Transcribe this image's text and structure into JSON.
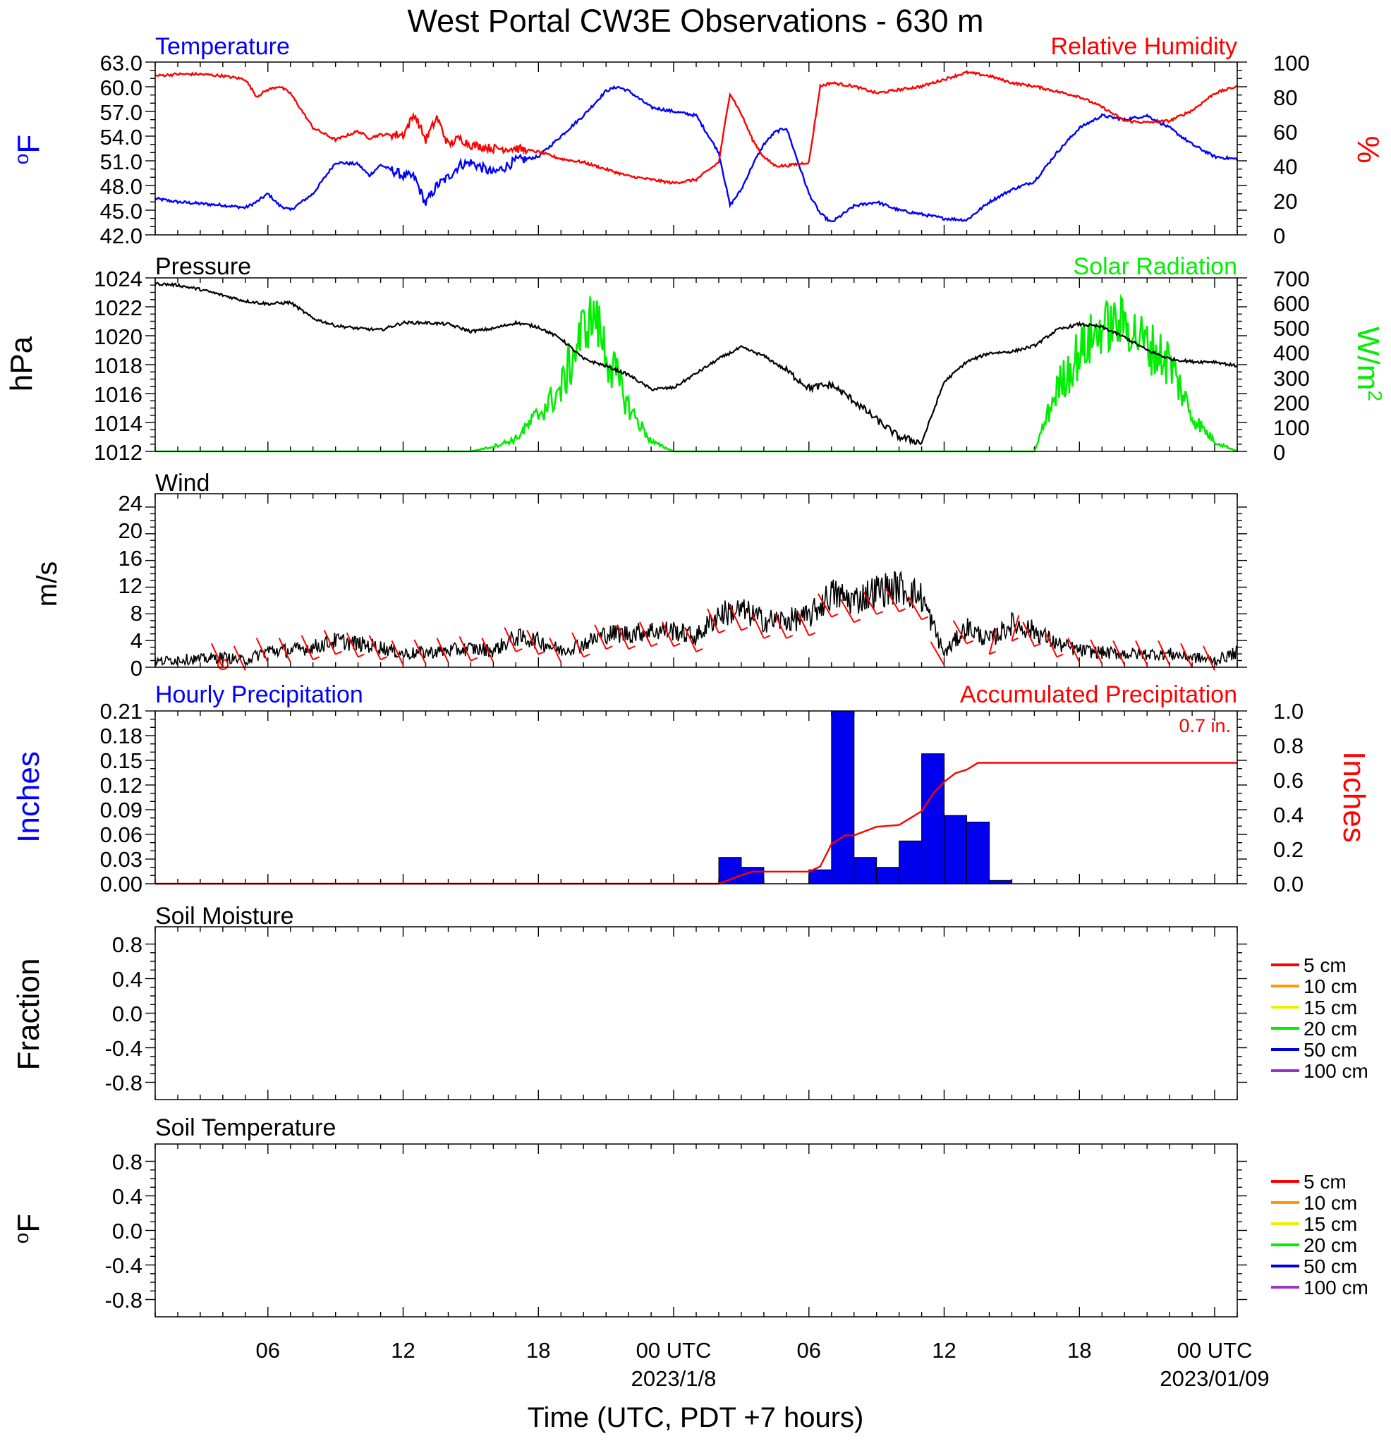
{
  "title": "West Portal CW3E Observations - 630 m",
  "xaxis": {
    "label": "Time (UTC, PDT +7 hours)",
    "start_hour": 1,
    "end_hour": 49,
    "ticks": [
      {
        "hour": 6,
        "label": "06",
        "date": ""
      },
      {
        "hour": 12,
        "label": "12",
        "date": ""
      },
      {
        "hour": 18,
        "label": "18",
        "date": ""
      },
      {
        "hour": 24,
        "label": "00 UTC",
        "date": "2023/1/8"
      },
      {
        "hour": 30,
        "label": "06",
        "date": ""
      },
      {
        "hour": 36,
        "label": "12",
        "date": ""
      },
      {
        "hour": 42,
        "label": "18",
        "date": ""
      },
      {
        "hour": 48,
        "label": "00 UTC",
        "date": "2023/01/09"
      }
    ]
  },
  "panels": {
    "temperature": {
      "left_title": "Temperature",
      "right_title": "Relative Humidity",
      "left_unit": "oF",
      "right_unit": "%",
      "left_ticks": [
        "63.0",
        "60.0",
        "57.0",
        "54.0",
        "51.0",
        "48.0",
        "45.0",
        "42.0"
      ],
      "right_ticks": [
        "100",
        "80",
        "60",
        "40",
        "20",
        "0"
      ]
    },
    "pressure": {
      "left_title": "Pressure",
      "right_title": "Solar Radiation",
      "left_unit": "hPa",
      "right_unit": "W/m2",
      "left_ticks": [
        "1024",
        "1022",
        "1020",
        "1018",
        "1016",
        "1014",
        "1012"
      ],
      "right_ticks": [
        "700",
        "600",
        "500",
        "400",
        "300",
        "200",
        "100",
        "0"
      ]
    },
    "wind": {
      "left_title": "Wind",
      "left_unit": "m/s",
      "left_ticks": [
        "24",
        "20",
        "16",
        "12",
        "8",
        "4",
        "0"
      ]
    },
    "precip": {
      "left_title": "Hourly Precipitation",
      "right_title": "Accumulated Precipitation",
      "left_unit": "Inches",
      "right_unit": "Inches",
      "total_label": "0.7 in.",
      "left_ticks": [
        "0.21",
        "0.18",
        "0.15",
        "0.12",
        "0.09",
        "0.06",
        "0.03",
        "0.00"
      ],
      "right_ticks": [
        "1.0",
        "0.8",
        "0.6",
        "0.4",
        "0.2",
        "0.0"
      ]
    },
    "soil_moisture": {
      "left_title": "Soil Moisture",
      "left_unit": "Fraction",
      "left_ticks": [
        "0.8",
        "0.4",
        "0.0",
        "-0.4",
        "-0.8"
      ],
      "legend": [
        "5 cm",
        "10 cm",
        "15 cm",
        "20 cm",
        "50 cm",
        "100 cm"
      ]
    },
    "soil_temperature": {
      "left_title": "Soil Temperature",
      "left_unit": "oF",
      "left_ticks": [
        "0.8",
        "0.4",
        "0.0",
        "-0.4",
        "-0.8"
      ],
      "legend": [
        "5 cm",
        "10 cm",
        "15 cm",
        "20 cm",
        "50 cm",
        "100 cm"
      ]
    }
  },
  "colors": {
    "temperature": "#0000ff",
    "relative_humidity": "#ff0000",
    "pressure": "#000000",
    "solar_radiation": "#00ee00",
    "wind_speed": "#000000",
    "wind_barbs": "#ff0000",
    "hourly_precip": "#0000ee",
    "accum_precip": "#ff0000",
    "legend_5cm": "#ff0000",
    "legend_10cm": "#ff9900",
    "legend_15cm": "#eeee00",
    "legend_20cm": "#00ee00",
    "legend_50cm": "#0000dd",
    "legend_100cm": "#9933cc"
  },
  "chart_data": [
    {
      "type": "line",
      "title": "Temperature",
      "ylabel": "oF",
      "ylim": [
        42,
        63
      ],
      "x": [
        1,
        2,
        3,
        4,
        5,
        5.5,
        6,
        6.5,
        7,
        8,
        9,
        10,
        10.5,
        11,
        12,
        12.5,
        13,
        13.5,
        14,
        14.5,
        15,
        16,
        17,
        18,
        19,
        20,
        21,
        21.5,
        22,
        23,
        24,
        25,
        26,
        26.5,
        27,
        27.5,
        28,
        28.5,
        29,
        30,
        30.5,
        31,
        31.5,
        32,
        33,
        34,
        35,
        36,
        37,
        38,
        39,
        40,
        41,
        42,
        43,
        44,
        45,
        46,
        47,
        48,
        49
      ],
      "values": [
        46.4,
        46.0,
        45.8,
        45.6,
        45.3,
        46.0,
        47.0,
        45.6,
        45.0,
        47.0,
        50.8,
        50.6,
        49.2,
        50.5,
        49.2,
        49.0,
        45.8,
        48.0,
        49.0,
        50.5,
        50.8,
        49.5,
        51.0,
        51.5,
        54.0,
        56.5,
        59.5,
        60.0,
        59.5,
        57.5,
        57.0,
        56.5,
        52.0,
        45.6,
        47.5,
        50.5,
        53.0,
        54.5,
        55.0,
        47.0,
        44.6,
        43.5,
        44.5,
        45.5,
        46.0,
        45.0,
        44.5,
        44.0,
        43.8,
        46.0,
        47.5,
        48.5,
        52.0,
        55.0,
        56.5,
        56.0,
        56.5,
        55.0,
        53.0,
        51.5,
        51.2
      ]
    },
    {
      "type": "line",
      "title": "Relative Humidity",
      "ylabel": "%",
      "ylim": [
        0,
        100
      ],
      "x": [
        1,
        2,
        3,
        4,
        5,
        5.5,
        6,
        6.5,
        7,
        8,
        9,
        10,
        10.5,
        11,
        12,
        12.5,
        13,
        13.5,
        14,
        14.5,
        15,
        16,
        17,
        18,
        19,
        20,
        21,
        22,
        23,
        24,
        25,
        26,
        26.5,
        27,
        27.5,
        28,
        28.5,
        29,
        30,
        30.5,
        31,
        32,
        33,
        34,
        35,
        36,
        37,
        38,
        39,
        40,
        41,
        42,
        43,
        44,
        45,
        46,
        47,
        48,
        49
      ],
      "values": [
        92,
        93,
        93,
        92,
        90,
        80,
        84,
        86,
        82,
        62,
        55,
        60,
        56,
        58,
        58,
        70,
        55,
        68,
        52,
        56,
        52,
        50,
        50,
        48,
        44,
        42,
        38,
        34,
        32,
        30,
        32,
        42,
        82,
        70,
        55,
        45,
        40,
        40,
        42,
        86,
        88,
        86,
        82,
        84,
        86,
        90,
        94,
        92,
        88,
        86,
        83,
        80,
        74,
        66,
        65,
        66,
        72,
        82,
        86
      ]
    },
    {
      "type": "line",
      "title": "Pressure",
      "ylabel": "hPa",
      "ylim": [
        1012,
        1024
      ],
      "x": [
        1,
        2,
        3,
        4,
        5,
        6,
        7,
        8,
        9,
        10,
        11,
        12,
        13,
        14,
        15,
        16,
        17,
        18,
        19,
        20,
        21,
        22,
        23,
        24,
        25,
        26,
        27,
        28,
        29,
        30,
        31,
        32,
        33,
        34,
        35,
        36,
        37,
        38,
        39,
        40,
        41,
        42,
        43,
        44,
        45,
        46,
        47,
        48,
        49
      ],
      "values": [
        1023.6,
        1023.5,
        1023.2,
        1022.8,
        1022.4,
        1022.2,
        1022.3,
        1021.2,
        1020.7,
        1020.5,
        1020.4,
        1020.9,
        1020.9,
        1020.8,
        1020.3,
        1020.5,
        1020.9,
        1020.6,
        1019.8,
        1018.4,
        1017.9,
        1017.3,
        1016.3,
        1016.4,
        1017.4,
        1018.4,
        1019.2,
        1018.6,
        1017.6,
        1016.4,
        1016.6,
        1015.5,
        1014.2,
        1013.0,
        1012.6,
        1016.8,
        1018.2,
        1018.8,
        1018.9,
        1019.3,
        1020.4,
        1020.8,
        1020.6,
        1019.9,
        1019.0,
        1018.4,
        1018.2,
        1018.2,
        1017.9
      ]
    },
    {
      "type": "line",
      "title": "Solar Radiation",
      "ylabel": "W/m2",
      "ylim": [
        0,
        700
      ],
      "x": [
        1,
        15,
        16,
        17,
        18,
        19,
        20,
        20.5,
        21,
        22,
        23,
        24,
        40,
        41,
        42,
        43,
        44,
        45,
        46,
        47,
        48,
        49
      ],
      "values": [
        0,
        0,
        20,
        50,
        150,
        250,
        500,
        550,
        400,
        180,
        40,
        0,
        0,
        250,
        400,
        500,
        520,
        430,
        360,
        140,
        40,
        0
      ]
    },
    {
      "type": "line",
      "title": "Wind",
      "ylabel": "m/s",
      "ylim": [
        0,
        24
      ],
      "x": [
        1,
        2,
        3,
        4,
        5,
        6,
        7,
        8,
        9,
        10,
        11,
        12,
        13,
        14,
        15,
        16,
        17,
        18,
        19,
        20,
        21,
        22,
        23,
        24,
        25,
        26,
        27,
        28,
        29,
        30,
        31,
        32,
        33,
        34,
        35,
        36,
        37,
        38,
        39,
        40,
        41,
        42,
        43,
        44,
        45,
        46,
        47,
        48,
        49
      ],
      "values": [
        0.8,
        1.2,
        1.2,
        1.5,
        1.0,
        2.5,
        2.5,
        3.0,
        4.0,
        3.5,
        3.0,
        2.0,
        2.2,
        2.5,
        2.8,
        2.5,
        4.5,
        4.0,
        2.5,
        3.5,
        5.0,
        5.0,
        5.5,
        5.5,
        4.5,
        8.0,
        8.5,
        7.0,
        7.0,
        7.5,
        11.0,
        10.0,
        11.5,
        12.0,
        10.5,
        2.0,
        6.0,
        4.0,
        6.5,
        5.5,
        3.5,
        2.5,
        2.2,
        2.0,
        2.0,
        2.0,
        1.5,
        1.0,
        2.2
      ]
    },
    {
      "type": "bar",
      "title": "Hourly Precipitation",
      "ylabel": "Inches",
      "ylim": [
        0,
        0.21
      ],
      "x": [
        26,
        27,
        28,
        29,
        30,
        31,
        32,
        33,
        34,
        35,
        36,
        37,
        38
      ],
      "values": [
        0.032,
        0.02,
        0,
        0,
        0.017,
        0.21,
        0.032,
        0.02,
        0.052,
        0.158,
        0.083,
        0.075,
        0.004
      ]
    },
    {
      "type": "line",
      "title": "Accumulated Precipitation",
      "ylabel": "Inches",
      "ylim": [
        0,
        1.0
      ],
      "x": [
        1,
        26,
        26.6,
        27,
        27.5,
        28,
        30,
        30.5,
        31,
        31.6,
        32,
        33,
        34,
        35,
        35.5,
        36,
        36.5,
        37,
        37.5,
        38,
        49
      ],
      "values": [
        0,
        0,
        0.03,
        0.05,
        0.07,
        0.07,
        0.07,
        0.1,
        0.23,
        0.28,
        0.28,
        0.33,
        0.34,
        0.42,
        0.52,
        0.59,
        0.64,
        0.66,
        0.7,
        0.7,
        0.7
      ]
    }
  ]
}
